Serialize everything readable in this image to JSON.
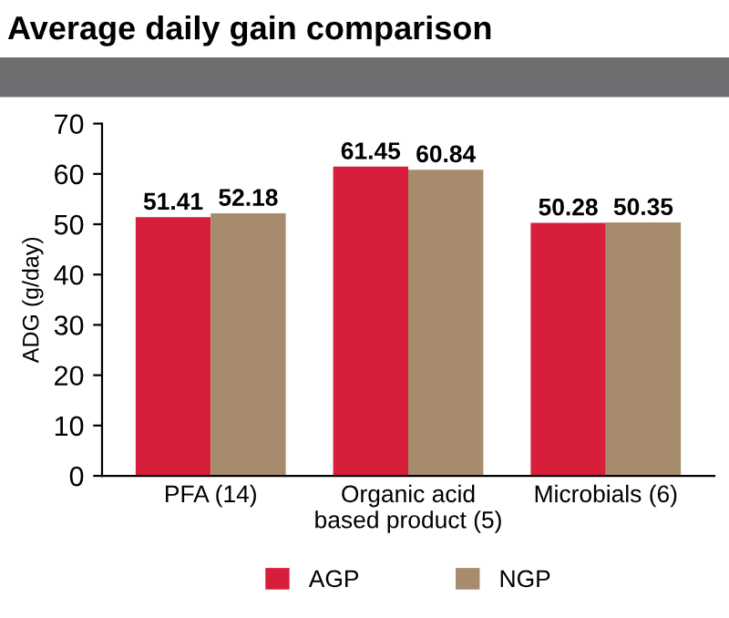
{
  "chart_data": {
    "type": "bar",
    "title": "Average daily gain comparison",
    "ylabel": "ADG (g/day)",
    "categories": [
      "PFA (14)",
      "Organic acid\nbased product (5)",
      "Microbials (6)"
    ],
    "series": [
      {
        "name": "AGP",
        "color": "#d71f3c",
        "values": [
          51.41,
          61.45,
          50.28
        ]
      },
      {
        "name": "NGP",
        "color": "#a68b6d",
        "values": [
          52.18,
          60.84,
          50.35
        ]
      }
    ],
    "ylim": [
      0,
      70
    ],
    "yticks": [
      0,
      10,
      20,
      30,
      40,
      50,
      60,
      70
    ],
    "data_labels": true,
    "grid": false,
    "legend": "bottom"
  }
}
